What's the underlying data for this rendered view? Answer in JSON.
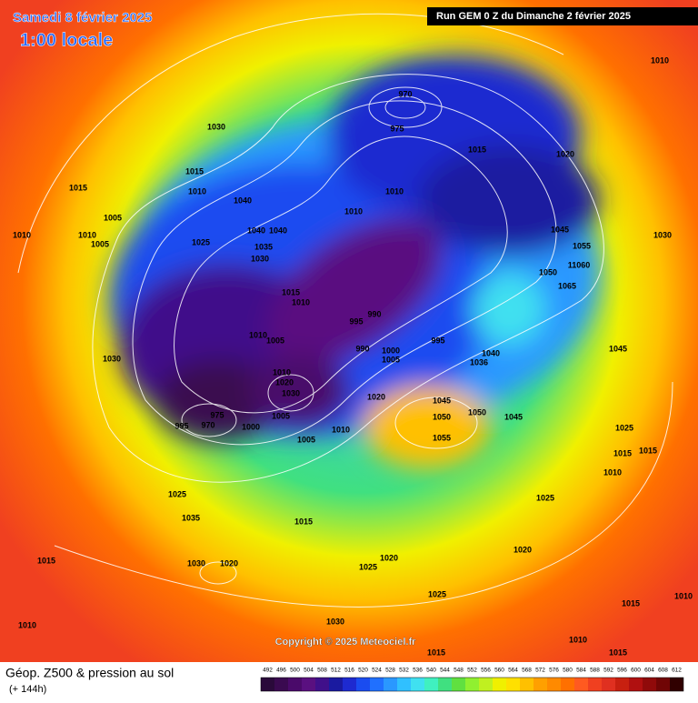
{
  "header": {
    "title": "Samedi 8 février 2025",
    "time": "1:00 locale",
    "run": "Run GEM 0 Z du Dimanche 2 février 2025"
  },
  "isobars": [
    "1010",
    "1030",
    "970",
    "975",
    "1015",
    "1015",
    "1010",
    "1005",
    "1010",
    "1010",
    "1005",
    "1040",
    "1040",
    "1040",
    "1035",
    "1030",
    "1025",
    "1010",
    "1010",
    "1015",
    "1020",
    "1045",
    "1055",
    "1030",
    "1050",
    "11060",
    "1065",
    "1015",
    "1010",
    "995",
    "990",
    "1010",
    "1005",
    "990",
    "1000",
    "1005",
    "995",
    "1040",
    "1036",
    "1030",
    "1045",
    "1010",
    "1020",
    "1030",
    "1020",
    "1045",
    "1050",
    "1050",
    "1045",
    "975",
    "995",
    "970",
    "1000",
    "1005",
    "1010",
    "1005",
    "1055",
    "1025",
    "1015",
    "1015",
    "1010",
    "1025",
    "1025",
    "1035",
    "1015",
    "1015",
    "1030",
    "1020",
    "1020",
    "1025",
    "1020",
    "1025",
    "1015",
    "1010",
    "1010",
    "1030",
    "1010",
    "1015",
    "1015"
  ],
  "copyright": "Copyright © 2025 Meteociel.fr",
  "footer": {
    "title": "Géop. Z500 & pression au sol",
    "lead": "(+ 144h)"
  },
  "scale": {
    "values": [
      492,
      496,
      500,
      504,
      508,
      512,
      516,
      520,
      524,
      528,
      532,
      536,
      540,
      544,
      548,
      552,
      556,
      560,
      564,
      568,
      572,
      576,
      580,
      584,
      588,
      592,
      596,
      600,
      604,
      608,
      612
    ],
    "colors": [
      "#2a0a3a",
      "#3a0a50",
      "#4a0a6a",
      "#5a1080",
      "#40108a",
      "#1a1aa0",
      "#1e2ad0",
      "#1a4cf0",
      "#2070ff",
      "#2a98ff",
      "#30c0ff",
      "#40e0f0",
      "#40f0c0",
      "#40e080",
      "#60e040",
      "#90f030",
      "#c0f020",
      "#f0f000",
      "#ffe000",
      "#ffc000",
      "#ffa000",
      "#ff8a00",
      "#ff7000",
      "#ff5a20",
      "#f04020",
      "#e03020",
      "#c82010",
      "#b01010",
      "#900a0a",
      "#700505",
      "#300000"
    ]
  }
}
